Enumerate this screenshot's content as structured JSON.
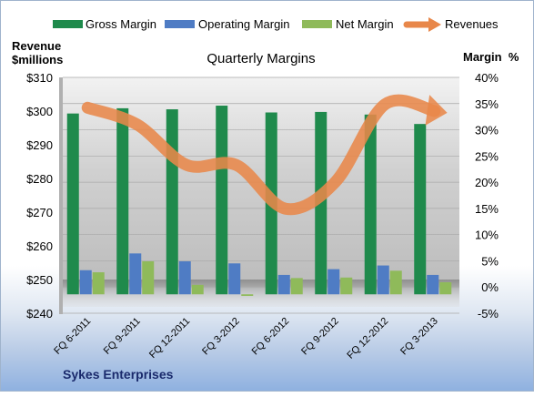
{
  "chart_data": {
    "type": "bar",
    "title": "Quarterly Margins",
    "company": "Sykes Enterprises",
    "left_axis_label": "Revenue\n$millions",
    "right_axis_label": "Margin  %",
    "categories": [
      "FQ 6-2011",
      "FQ 9-2011",
      "FQ 12-2011",
      "FQ 3-2012",
      "FQ 6-2012",
      "FQ 9-2012",
      "FQ 12-2012",
      "FQ 3-2013"
    ],
    "left_axis": {
      "min": 240,
      "max": 310,
      "step": 10,
      "tick_labels": [
        "$240",
        "$250",
        "$260",
        "$270",
        "$280",
        "$290",
        "$300",
        "$310"
      ]
    },
    "right_axis": {
      "min": -5,
      "max": 40,
      "step": 5,
      "tick_labels": [
        "-5%",
        "0%",
        "5%",
        "10%",
        "15%",
        "20%",
        "25%",
        "30%",
        "35%",
        "40%"
      ]
    },
    "series": [
      {
        "name": "Gross Margin",
        "axis": "right",
        "color": "#1f8a4c",
        "values": [
          34.5,
          35.5,
          35.3,
          36.0,
          34.7,
          34.8,
          34.3,
          32.5
        ]
      },
      {
        "name": "Operating Margin",
        "axis": "right",
        "color": "#4f7cc4",
        "values": [
          4.6,
          7.8,
          6.3,
          5.9,
          3.7,
          4.8,
          5.5,
          3.7
        ]
      },
      {
        "name": "Net Margin",
        "axis": "right",
        "color": "#8fba5a",
        "values": [
          4.2,
          6.3,
          1.8,
          -0.3,
          3.1,
          3.2,
          4.5,
          2.3
        ]
      },
      {
        "name": "Revenues",
        "axis": "left",
        "type": "line",
        "color": "#e8874a",
        "values": [
          301,
          296,
          284,
          284,
          271,
          279,
          302,
          300
        ]
      }
    ],
    "grid": true,
    "legend": "top"
  }
}
